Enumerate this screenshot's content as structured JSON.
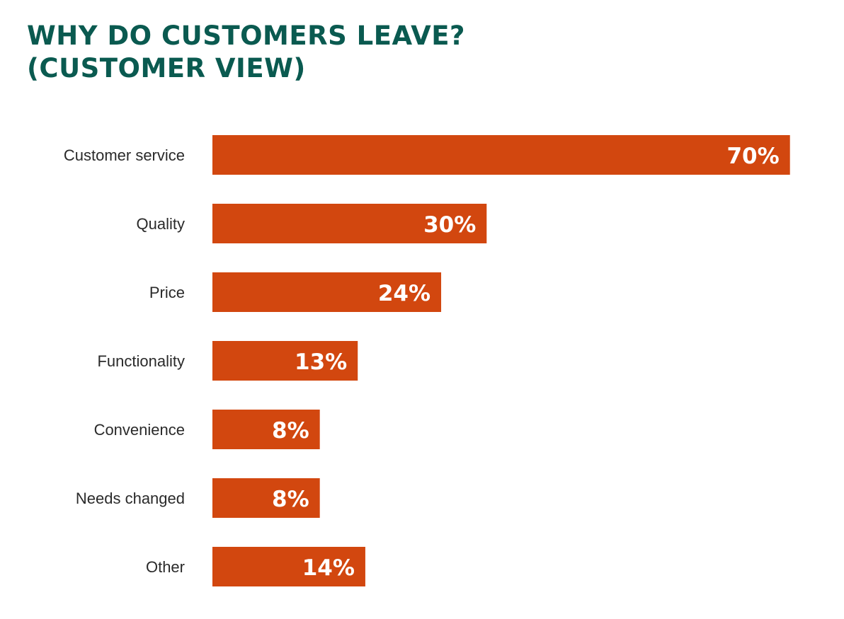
{
  "chart_data": {
    "type": "bar",
    "orientation": "horizontal",
    "title_lines": [
      "WHY DO CUSTOMERS LEAVE?",
      "(CUSTOMER VIEW)"
    ],
    "categories": [
      "Customer service",
      "Quality",
      "Price",
      "Functionality",
      "Convenience",
      "Needs changed",
      "Other"
    ],
    "values": [
      70,
      30,
      24,
      13,
      8,
      8,
      14
    ],
    "value_labels": [
      "70%",
      "30%",
      "24%",
      "13%",
      "8%",
      "8%",
      "14%"
    ],
    "unit": "%",
    "grid": false,
    "colors": {
      "bar": "#d2470f",
      "title": "#0a5a50",
      "label": "#2a2a2a",
      "value_label": "#ffffff"
    }
  }
}
